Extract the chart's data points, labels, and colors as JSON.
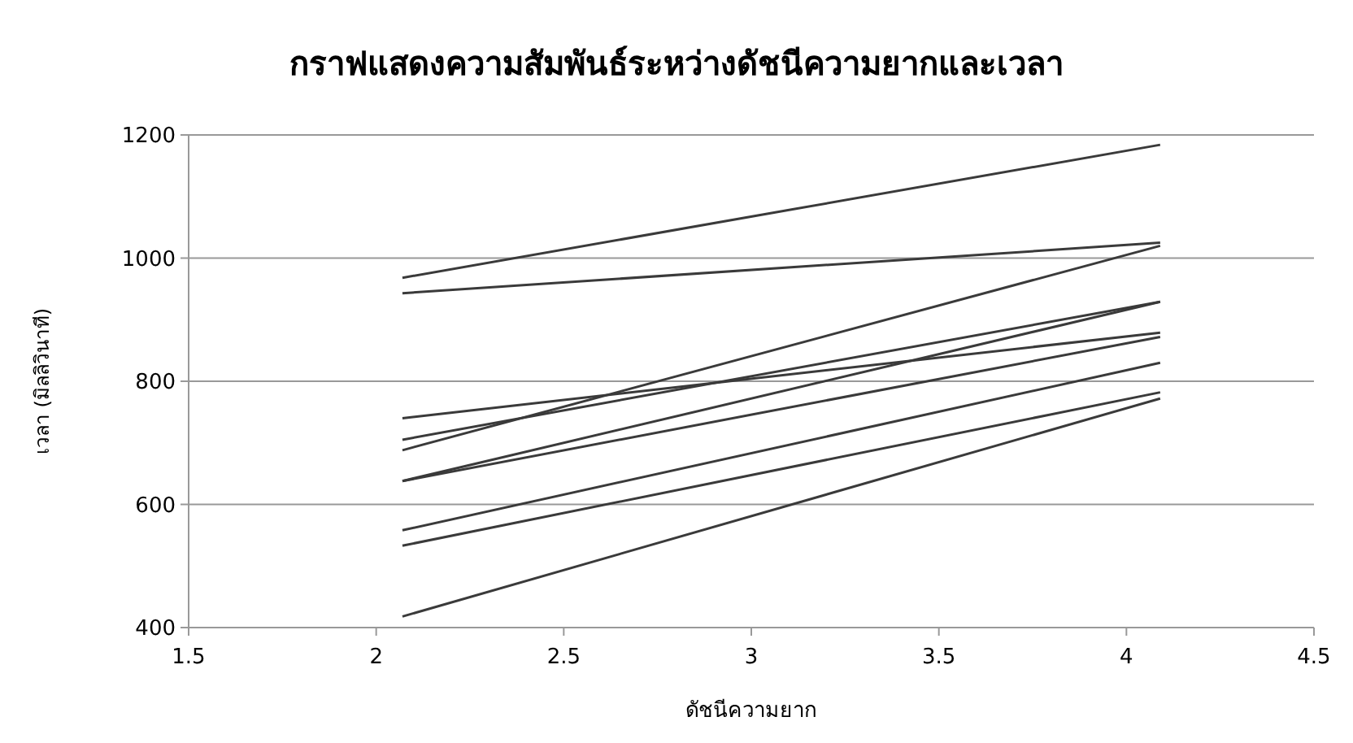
{
  "chart_data": {
    "type": "line",
    "title": "กราฟแสดงความสัมพันธ์ระหว่างดัชนีความยากและเวลา",
    "xlabel": "ดัชนีความยาก",
    "ylabel": "เวลา (มิลลิวินาที)",
    "x": [
      2.07,
      4.09
    ],
    "xlim": [
      1.5,
      4.5
    ],
    "xticks": [
      1.5,
      2,
      2.5,
      3,
      3.5,
      4,
      4.5
    ],
    "ylim": [
      400,
      1200
    ],
    "yticks": [
      400,
      600,
      800,
      1000,
      1200
    ],
    "grid": "y",
    "marker": "none",
    "line_style": "solid",
    "series": [
      {
        "color": "#3a3a3a",
        "values": [
          968,
          1184
        ]
      },
      {
        "color": "#3a3a3a",
        "values": [
          943,
          1025
        ]
      },
      {
        "color": "#3a3a3a",
        "values": [
          740,
          879
        ]
      },
      {
        "color": "#3a3a3a",
        "values": [
          705,
          929
        ]
      },
      {
        "color": "#3a3a3a",
        "values": [
          688,
          1020
        ]
      },
      {
        "color": "#3a3a3a",
        "values": [
          638,
          929
        ]
      },
      {
        "color": "#3a3a3a",
        "values": [
          638,
          872
        ]
      },
      {
        "color": "#3a3a3a",
        "values": [
          558,
          830
        ]
      },
      {
        "color": "#3a3a3a",
        "values": [
          533,
          782
        ]
      },
      {
        "color": "#3a3a3a",
        "values": [
          418,
          772
        ]
      }
    ]
  }
}
